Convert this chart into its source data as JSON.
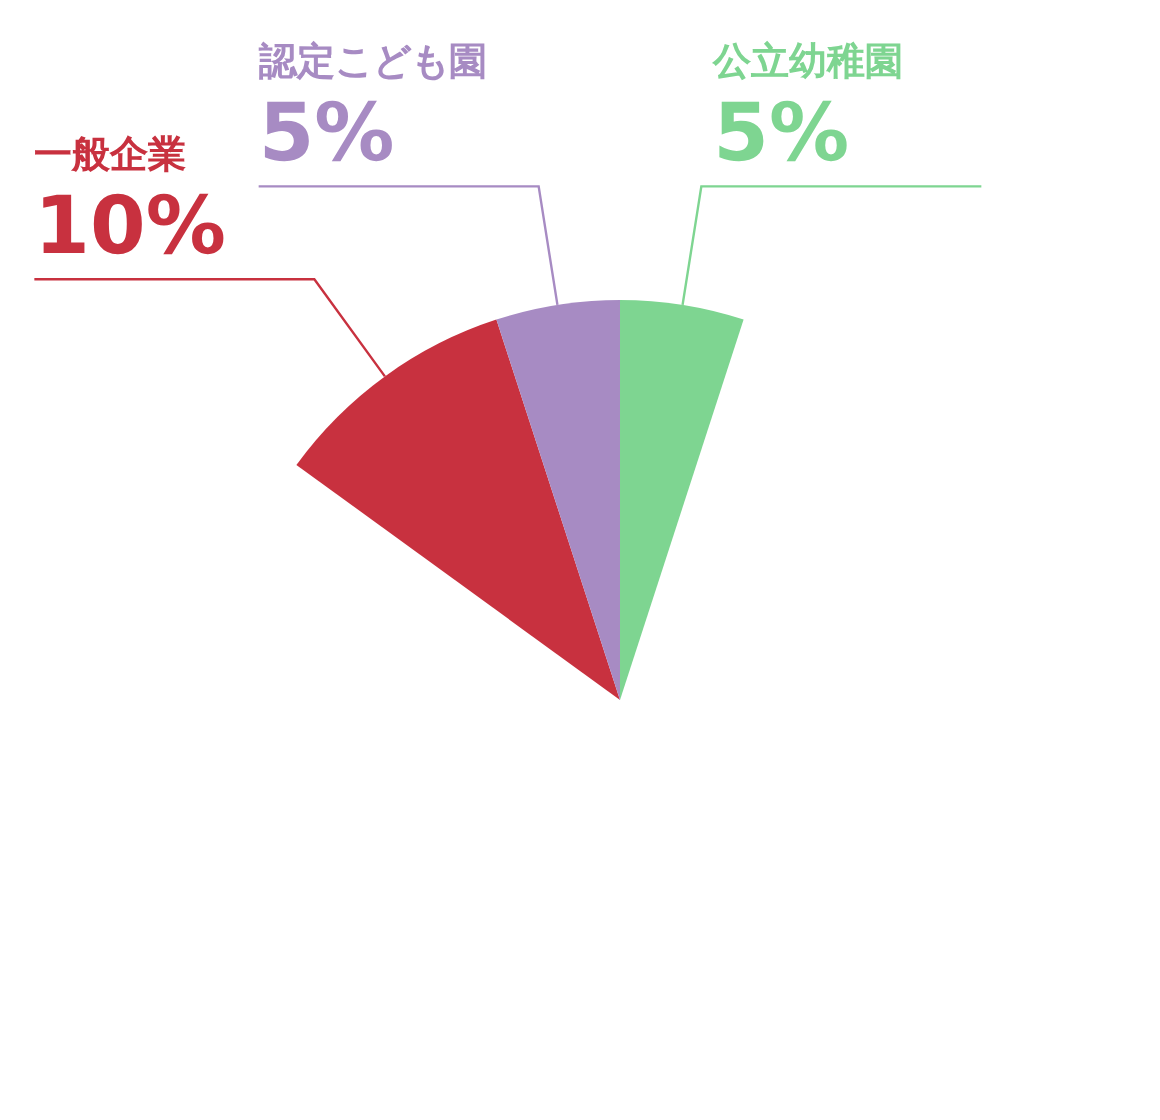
{
  "chart_data": {
    "type": "pie",
    "categories": [
      "一般企業",
      "認定こども園",
      "公立幼稚園"
    ],
    "values": [
      10,
      5,
      5
    ],
    "colors": [
      "#c8313f",
      "#a78bc3",
      "#7ed591"
    ],
    "value_labels": [
      "10%",
      "5%",
      "5%"
    ]
  }
}
